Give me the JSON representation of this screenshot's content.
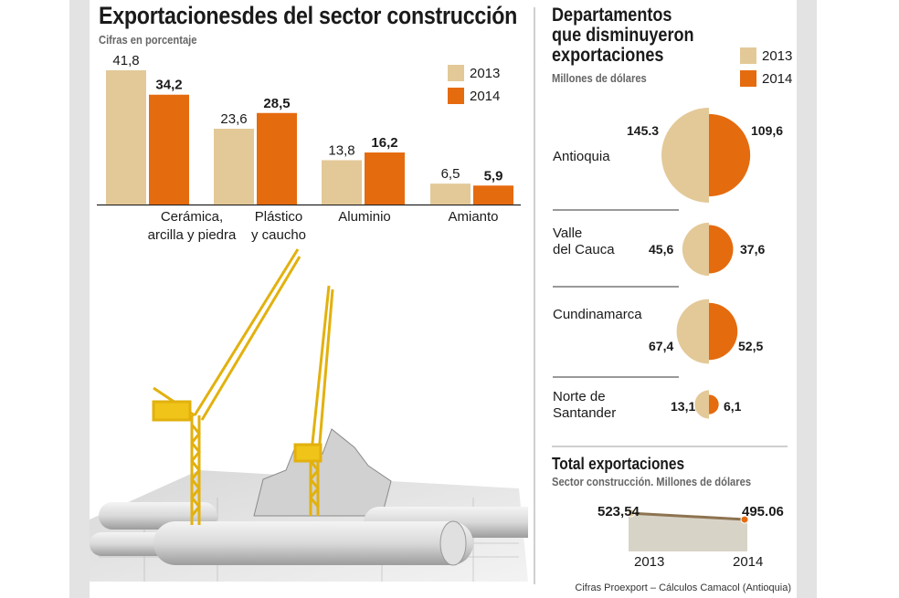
{
  "colors": {
    "c2013": "#e3c998",
    "c2014": "#e56b0f",
    "sep": "#cfcfcf",
    "crane": "#f0c419"
  },
  "header": {
    "title": "Exportacionesdes del sector construcción",
    "subtitle": "Cifras en porcentaje"
  },
  "legend": {
    "y2013": "2013",
    "y2014": "2014"
  },
  "right_panel": {
    "title_lines": [
      "Departamentos",
      "que disminuyeron",
      "exportaciones"
    ],
    "subtitle": "Millones de dólares"
  },
  "departments": [
    {
      "name_lines": [
        "Antioquia"
      ],
      "v2013": "145.3",
      "v2014": "109,6"
    },
    {
      "name_lines": [
        "Valle",
        "del Cauca"
      ],
      "v2013": "45,6",
      "v2014": "37,6"
    },
    {
      "name_lines": [
        "Cundinamarca"
      ],
      "v2013": "67,4",
      "v2014": "52,5"
    },
    {
      "name_lines": [
        "Norte de",
        "Santander"
      ],
      "v2013": "13,1",
      "v2014": "6,1"
    }
  ],
  "total": {
    "title": "Total exportaciones",
    "subtitle": "Sector construcción. Millones de dólares",
    "v2013": "523,54",
    "v2014": "495.06",
    "x2013": "2013",
    "x2014": "2014"
  },
  "footer": {
    "source": "Cifras Proexport – Cálculos Camacol (Antioquia)"
  },
  "chart_data": [
    {
      "type": "bar",
      "title": "Exportacionesdes del sector construcción",
      "subtitle": "Cifras en porcentaje",
      "categories": [
        "Cerámica,\narcilla y piedra",
        "Plástico\ny caucho",
        "Aluminio",
        "Amianto"
      ],
      "series": [
        {
          "name": "2013",
          "values": [
            41.8,
            23.6,
            13.8,
            6.5
          ],
          "labels": [
            "41,8",
            "23,6",
            "13,8",
            "6,5"
          ]
        },
        {
          "name": "2014",
          "values": [
            34.2,
            28.5,
            16.2,
            5.9
          ],
          "labels": [
            "34,2",
            "28,5",
            "16,2",
            "5,9"
          ]
        }
      ],
      "ylim": [
        0,
        41.8
      ]
    },
    {
      "type": "pie",
      "title": "Departamentos que disminuyeron exportaciones",
      "subtitle": "Millones de dólares",
      "categories": [
        "Antioquia",
        "Valle del Cauca",
        "Cundinamarca",
        "Norte de Santander"
      ],
      "series": [
        {
          "name": "2013",
          "values": [
            145.3,
            45.6,
            67.4,
            13.1
          ]
        },
        {
          "name": "2014",
          "values": [
            109.6,
            37.6,
            52.5,
            6.1
          ]
        }
      ]
    },
    {
      "type": "line",
      "title": "Total exportaciones",
      "subtitle": "Sector construcción. Millones de dólares",
      "x": [
        "2013",
        "2014"
      ],
      "values": [
        523.54,
        495.06
      ]
    }
  ]
}
